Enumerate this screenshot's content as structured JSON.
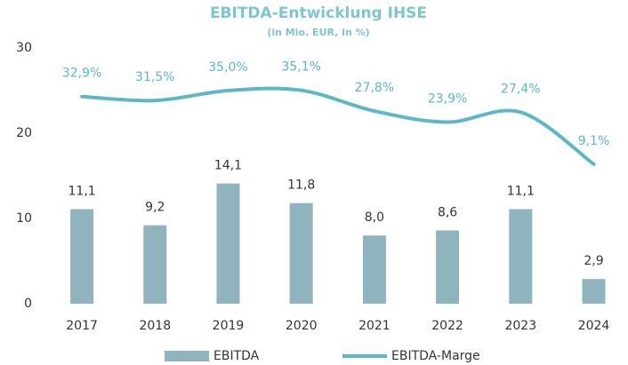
{
  "chart_data": {
    "type": "bar_line",
    "title": "EBITDA-Entwicklung IHSE",
    "subtitle": "(in Mio. EUR, in %)",
    "categories": [
      "2017",
      "2018",
      "2019",
      "2020",
      "2021",
      "2022",
      "2023",
      "2024"
    ],
    "series": [
      {
        "name": "EBITDA",
        "color": "#8fb4bd",
        "values": [
          11.1,
          9.2,
          14.1,
          11.8,
          8.0,
          8.6,
          11.1,
          2.9
        ],
        "value_labels": [
          "11,1",
          "9,2",
          "14,1",
          "11,8",
          "8,0",
          "8,6",
          "11,1",
          "2,9"
        ]
      },
      {
        "name": "EBITDA-Marge",
        "color": "#5bb8c4",
        "axis": "y2",
        "values": [
          32.9,
          31.5,
          35.0,
          35.1,
          27.8,
          23.9,
          27.4,
          9.1
        ],
        "value_labels": [
          "32,9%",
          "31,5%",
          "35,0%",
          "35,1%",
          "27,8%",
          "23,9%",
          "27,4%",
          "9,1%"
        ]
      }
    ],
    "ylim": [
      0,
      30
    ],
    "yticks": [
      0,
      10,
      20,
      30
    ],
    "y2lim": [
      -40,
      50
    ],
    "legend": "bottom"
  }
}
